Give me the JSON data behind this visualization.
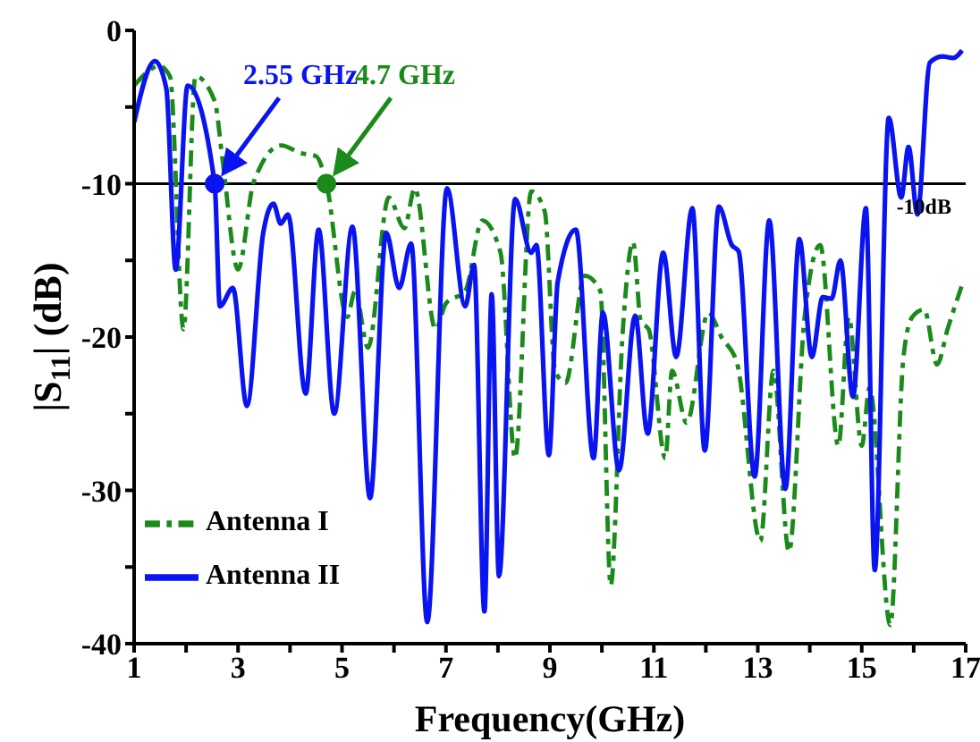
{
  "chart_data": {
    "type": "line",
    "xlabel": "Frequency(GHz)",
    "ylabel": "|S$_{11}$| (dB)",
    "xlim": [
      1,
      17
    ],
    "ylim": [
      -40,
      0
    ],
    "xticks": [
      1,
      {
        "value": 2,
        "label": null
      },
      3,
      {
        "value": 4,
        "label": null
      },
      5,
      {
        "value": 6,
        "label": null
      },
      7,
      {
        "value": 8,
        "label": null
      },
      9,
      {
        "value": 10,
        "label": null
      },
      11,
      {
        "value": 12,
        "label": null
      },
      13,
      {
        "value": 14,
        "label": null
      },
      15,
      {
        "value": 16,
        "label": null
      },
      17
    ],
    "yticks": [
      -40,
      {
        "value": -35,
        "label": null
      },
      -30,
      {
        "value": -25,
        "label": null
      },
      -20,
      {
        "value": -15,
        "label": null
      },
      -10,
      {
        "value": -5,
        "label": null
      },
      0
    ],
    "grid": false,
    "legend": "bottom left",
    "marker": "none",
    "series": [
      {
        "name": "Antenna I",
        "color": "#1a8a1a",
        "line_style": "dashdot",
        "x": [
          1.0,
          1.3,
          1.47,
          1.69,
          1.95,
          2.18,
          2.55,
          2.7,
          3.0,
          3.3,
          3.83,
          4.2,
          4.5,
          4.7,
          5.1,
          5.25,
          5.5,
          5.9,
          6.2,
          6.4,
          6.8,
          7.0,
          7.37,
          7.7,
          8.05,
          8.33,
          8.64,
          8.9,
          9.1,
          9.3,
          9.67,
          9.97,
          10.17,
          10.4,
          10.6,
          10.75,
          10.9,
          11.22,
          11.35,
          11.63,
          12.05,
          12.3,
          12.6,
          13.05,
          13.3,
          13.6,
          13.9,
          14.2,
          14.55,
          14.75,
          15.0,
          15.15,
          15.55,
          15.8,
          15.97,
          16.2,
          16.45,
          16.65,
          16.92
        ],
        "values": [
          -3.6,
          -2.6,
          -2.3,
          -3,
          -19.5,
          -3,
          -4.6,
          -8.4,
          -15.6,
          -9.9,
          -7.5,
          -8,
          -8.2,
          -10,
          -18.7,
          -17,
          -20.7,
          -10.9,
          -12.9,
          -10.3,
          -19.5,
          -17.8,
          -17,
          -12.4,
          -14.5,
          -27.9,
          -10.5,
          -11.8,
          -22.2,
          -23,
          -16,
          -17,
          -36.2,
          -19.7,
          -13.8,
          -19,
          -19.5,
          -27.9,
          -22.2,
          -25.6,
          -18.4,
          -20,
          -21.7,
          -33.3,
          -22.2,
          -34,
          -18.7,
          -14,
          -27.1,
          -18.7,
          -27.1,
          -23.3,
          -38.8,
          -21.4,
          -18.7,
          -18.2,
          -21.8,
          -19.5,
          -16.7
        ]
      },
      {
        "name": "Antenna II",
        "color": "#0a14f0",
        "line_style": "solid",
        "x": [
          1.0,
          1.4,
          1.62,
          1.8,
          2.03,
          2.55,
          2.65,
          2.9,
          3.17,
          3.48,
          3.68,
          3.82,
          3.96,
          4.3,
          4.55,
          4.85,
          5.2,
          5.54,
          5.85,
          6.1,
          6.33,
          6.64,
          7.02,
          7.37,
          7.54,
          7.74,
          7.88,
          8.02,
          8.33,
          8.64,
          8.74,
          8.98,
          9.15,
          9.5,
          9.84,
          10.02,
          10.33,
          10.64,
          10.88,
          11.18,
          11.43,
          11.74,
          11.98,
          12.25,
          12.5,
          12.63,
          12.94,
          13.22,
          13.53,
          13.8,
          14.04,
          14.25,
          14.42,
          14.59,
          14.83,
          15.08,
          15.25,
          15.52,
          15.76,
          15.9,
          16.07,
          16.31,
          16.55,
          16.76,
          16.93
        ],
        "values": [
          -6,
          -2,
          -3.8,
          -15.6,
          -3.6,
          -10,
          -18,
          -16.8,
          -24.5,
          -13.3,
          -11.3,
          -12.6,
          -12,
          -23.7,
          -13,
          -25,
          -12.8,
          -30.5,
          -13.2,
          -16.8,
          -13.9,
          -38.6,
          -10.3,
          -18,
          -15.3,
          -37.9,
          -17.2,
          -35.6,
          -11,
          -14.5,
          -14,
          -27.7,
          -16.4,
          -13,
          -27.9,
          -18.4,
          -28.7,
          -18.6,
          -26.3,
          -14.5,
          -21.3,
          -11.6,
          -27.4,
          -11.5,
          -14,
          -14.4,
          -29.1,
          -12.4,
          -29.9,
          -13.6,
          -21.3,
          -17.4,
          -17.5,
          -15,
          -23.9,
          -11.6,
          -35.2,
          -5.7,
          -10.9,
          -7.6,
          -12,
          -2.1,
          -1.7,
          -1.8,
          -1.3
        ]
      }
    ],
    "ref_lines": [
      {
        "axis": "y",
        "value": -10,
        "label": "-10dB",
        "color": "#000000"
      }
    ],
    "annotations": [
      {
        "text": "2.55 GHz",
        "x": 2.55,
        "y": -10
      },
      {
        "text": "4.7 GHz",
        "x": 4.7,
        "y": -10
      }
    ]
  }
}
